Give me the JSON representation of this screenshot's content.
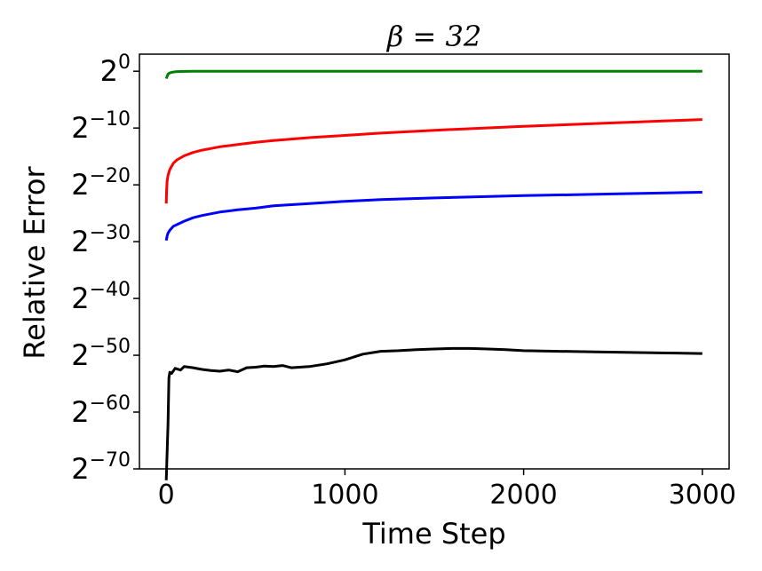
{
  "chart_data": {
    "type": "line",
    "title": "β = 32",
    "xlabel": "Time Step",
    "ylabel": "Relative Error",
    "y_scale": "log2",
    "xlim": [
      -150,
      3150
    ],
    "ylim_exponent": [
      -70,
      3
    ],
    "x_ticks": [
      {
        "value": 0,
        "label": "0"
      },
      {
        "value": 1000,
        "label": "1000"
      },
      {
        "value": 2000,
        "label": "2000"
      },
      {
        "value": 3000,
        "label": "3000"
      }
    ],
    "y_ticks": [
      {
        "exponent": 0,
        "base": "2",
        "sup": "0"
      },
      {
        "exponent": -10,
        "base": "2",
        "sup": "−10"
      },
      {
        "exponent": -20,
        "base": "2",
        "sup": "−20"
      },
      {
        "exponent": -30,
        "base": "2",
        "sup": "−30"
      },
      {
        "exponent": -40,
        "base": "2",
        "sup": "−40"
      },
      {
        "exponent": -50,
        "base": "2",
        "sup": "−50"
      },
      {
        "exponent": -60,
        "base": "2",
        "sup": "−60"
      },
      {
        "exponent": -70,
        "base": "2",
        "sup": "−70"
      }
    ],
    "grid": false,
    "series": [
      {
        "color": "#008000",
        "x": [
          0,
          5,
          10,
          20,
          30,
          50,
          80,
          150,
          300,
          1000,
          2000,
          3000
        ],
        "y_log2": [
          -1.3,
          -0.9,
          -0.5,
          -0.3,
          -0.2,
          -0.1,
          -0.05,
          0,
          0,
          0,
          0,
          0
        ]
      },
      {
        "color": "#ff0000",
        "x": [
          0,
          2,
          5,
          10,
          20,
          40,
          60,
          100,
          150,
          200,
          300,
          400,
          500,
          600,
          800,
          1000,
          1200,
          1500,
          2000,
          2500,
          3000
        ],
        "y_log2": [
          -23.3,
          -21,
          -19.3,
          -18.3,
          -17.3,
          -16.2,
          -15.6,
          -14.9,
          -14.3,
          -13.9,
          -13.3,
          -12.9,
          -12.5,
          -12.2,
          -11.7,
          -11.3,
          -10.9,
          -10.4,
          -9.7,
          -9.1,
          -8.5
        ]
      },
      {
        "color": "#0000ff",
        "x": [
          0,
          5,
          10,
          20,
          40,
          60,
          100,
          150,
          200,
          300,
          400,
          500,
          600,
          800,
          1000,
          1200,
          1500,
          2000,
          2500,
          3000
        ],
        "y_log2": [
          -29.8,
          -29,
          -28.5,
          -28,
          -27.3,
          -27,
          -26.4,
          -25.8,
          -25.4,
          -24.8,
          -24.4,
          -24.1,
          -23.7,
          -23.3,
          -22.9,
          -22.6,
          -22.3,
          -21.9,
          -21.6,
          -21.3
        ]
      },
      {
        "color": "#000000",
        "x": [
          0,
          10,
          15,
          20,
          30,
          50,
          80,
          100,
          150,
          200,
          250,
          300,
          350,
          400,
          450,
          500,
          550,
          600,
          650,
          700,
          800,
          900,
          1000,
          1100,
          1200,
          1300,
          1400,
          1500,
          1600,
          1700,
          1800,
          1900,
          2000,
          2200,
          2400,
          2600,
          2800,
          3000
        ],
        "y_log2": [
          -72,
          -62,
          -54,
          -53,
          -53.2,
          -52.3,
          -52.6,
          -52,
          -52.2,
          -52.5,
          -52.7,
          -52.8,
          -52.6,
          -52.9,
          -52.2,
          -52.1,
          -51.9,
          -52,
          -51.8,
          -52.2,
          -52,
          -51.5,
          -50.8,
          -49.8,
          -49.3,
          -49.2,
          -49,
          -48.9,
          -48.8,
          -48.8,
          -48.9,
          -49,
          -49.2,
          -49.3,
          -49.4,
          -49.5,
          -49.6,
          -49.7
        ]
      }
    ]
  }
}
